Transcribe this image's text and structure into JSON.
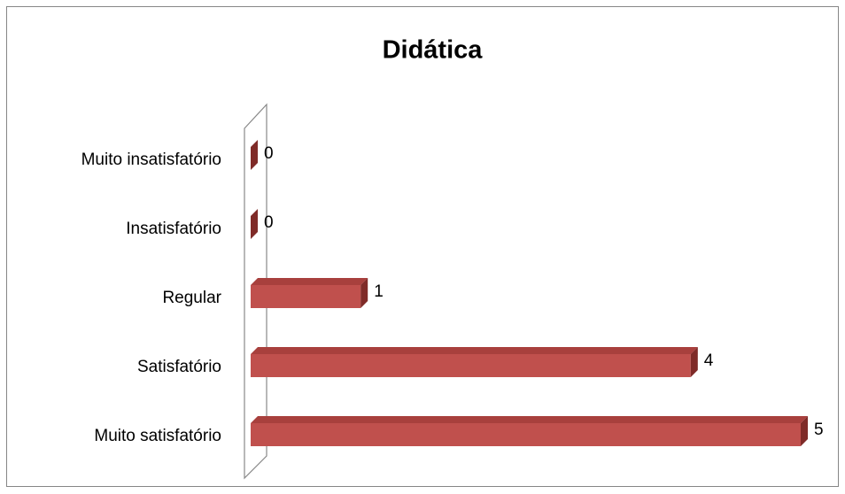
{
  "chart_data": {
    "type": "bar3d-horizontal",
    "title": "Didática",
    "categories": [
      "Muito satisfatório",
      "Satisfatório",
      "Regular",
      "Insatisfatório",
      "Muito insatisfatório"
    ],
    "values": [
      5,
      4,
      1,
      0,
      0
    ],
    "color": "#c0504d"
  }
}
